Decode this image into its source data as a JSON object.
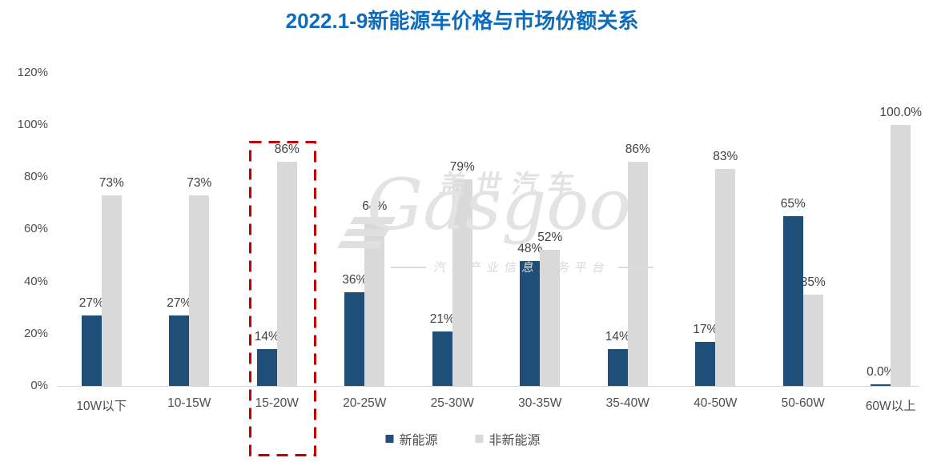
{
  "chart_data": {
    "type": "bar",
    "title": "2022.1-9新能源车价格与市场份额关系",
    "categories": [
      "10W以下",
      "10-15W",
      "15-20W",
      "20-25W",
      "25-30W",
      "30-35W",
      "35-40W",
      "40-50W",
      "50-60W",
      "60W以上"
    ],
    "series": [
      {
        "name": "新能源",
        "color": "#1F4E79",
        "values": [
          27,
          27,
          14,
          36,
          21,
          48,
          14,
          17,
          65,
          0
        ],
        "labels": [
          "27%",
          "27%",
          "14%",
          "36%",
          "21%",
          "48%",
          "14%",
          "17%",
          "65%",
          "0.0%"
        ]
      },
      {
        "name": "非新能源",
        "color": "#D9D9D9",
        "values": [
          73,
          73,
          86,
          64,
          79,
          52,
          86,
          83,
          35,
          100
        ],
        "labels": [
          "73%",
          "73%",
          "86%",
          "64%",
          "79%",
          "52%",
          "86%",
          "83%",
          "35%",
          "100.0%"
        ]
      }
    ],
    "xlabel": "",
    "ylabel": "",
    "ylim": [
      0,
      120
    ],
    "yticks": [
      "0%",
      "20%",
      "40%",
      "60%",
      "80%",
      "100%",
      "120%"
    ],
    "grid": false,
    "legend_position": "bottom",
    "highlight": {
      "category": "15-20W",
      "color": "#C00000"
    }
  },
  "watermark": {
    "cn": "盖世汽车",
    "en": "Gasgoo",
    "tagline": "汽车产业信息服务平台"
  },
  "colors": {
    "title": "#0E6CBE",
    "axis_text": "#4d4d4d",
    "axis_line": "#d6d6d6"
  }
}
